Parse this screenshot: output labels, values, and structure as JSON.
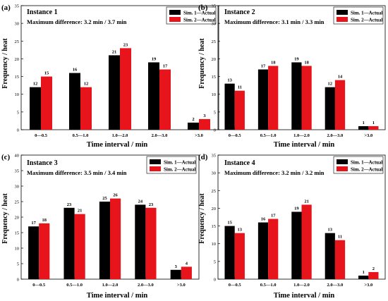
{
  "panels": [
    {
      "tag": "(a)",
      "instance": "Instance 1",
      "max_diff": "Maximum difference:  3.2 min / 3.7 min",
      "xlabel": "Time interval / min",
      "ylabel": "Frequency / heat",
      "legend": [
        "Sim. 1—Actual",
        "Sim. 2—Actual"
      ]
    },
    {
      "tag": "(b)",
      "instance": "Instance 2",
      "max_diff": "Maximum difference:  3.1 min / 3.3 min",
      "xlabel": "Time interval / min",
      "ylabel": "Frequency / heat",
      "legend": [
        "Sim. 1—Actual",
        "Sim. 2—Actual"
      ]
    },
    {
      "tag": "(c)",
      "instance": "Instance 3",
      "max_diff": "Maximum difference:  3.5 min / 3.4 min",
      "xlabel": "Time interval / min",
      "ylabel": "Frequency / heat",
      "legend": [
        "Sim. 1—Actual",
        "Sim. 2—Actual"
      ]
    },
    {
      "tag": "(d)",
      "instance": "Instance 4",
      "max_diff": "Maximum difference:  3.2 min / 3.2 min",
      "xlabel": "Time interval / min",
      "ylabel": "Frequency / heat",
      "legend": [
        "Sim. 1—Actual",
        "Sim. 2—Actual"
      ]
    }
  ],
  "colors": {
    "sim1": "#000000",
    "sim2": "#e8141b"
  },
  "chart_data": [
    {
      "type": "bar",
      "title": "Instance 1",
      "subtitle": "Maximum difference:  3.2 min / 3.7 min",
      "xlabel": "Time interval / min",
      "ylabel": "Frequency / heat",
      "ylim": [
        0,
        35
      ],
      "yticks": [
        0,
        5,
        10,
        15,
        20,
        25,
        30,
        35
      ],
      "categories": [
        "0—0.5",
        "0.5—1.0",
        "1.0—2.0",
        "2.0—3.0",
        ">3.0"
      ],
      "series": [
        {
          "name": "Sim. 1—Actual",
          "values": [
            12,
            16,
            21,
            19,
            2
          ]
        },
        {
          "name": "Sim. 2—Actual",
          "values": [
            15,
            12,
            23,
            17,
            3
          ]
        }
      ],
      "legend": "top-right",
      "grid": false
    },
    {
      "type": "bar",
      "title": "Instance 2",
      "subtitle": "Maximum difference:  3.1 min / 3.3 min",
      "xlabel": "Time interval / min",
      "ylabel": "Frequency / heat",
      "ylim": [
        0,
        35
      ],
      "yticks": [
        0,
        5,
        10,
        15,
        20,
        25,
        30,
        35
      ],
      "categories": [
        "0—0.5",
        "0.5—1.0",
        "1.0—2.0",
        "2.0—3.0",
        ">3.0"
      ],
      "series": [
        {
          "name": "Sim. 1—Actual",
          "values": [
            13,
            17,
            19,
            12,
            1
          ]
        },
        {
          "name": "Sim. 2—Actual",
          "values": [
            11,
            18,
            18,
            14,
            1
          ]
        }
      ],
      "legend": "top-right",
      "grid": false
    },
    {
      "type": "bar",
      "title": "Instance 3",
      "subtitle": "Maximum difference:  3.5 min / 3.4 min",
      "xlabel": "Time interval / min",
      "ylabel": "Frequency / heat",
      "ylim": [
        0,
        40
      ],
      "yticks": [
        0,
        5,
        10,
        15,
        20,
        25,
        30,
        35,
        40
      ],
      "categories": [
        "0—0.5",
        "0.5—1.0",
        "1.0—2.0",
        "2.0—3.0",
        ">3.0"
      ],
      "series": [
        {
          "name": "Sim. 1—Actual",
          "values": [
            17,
            23,
            25,
            24,
            3
          ]
        },
        {
          "name": "Sim. 2—Actual",
          "values": [
            18,
            21,
            26,
            23,
            4
          ]
        }
      ],
      "legend": "top-right",
      "grid": false
    },
    {
      "type": "bar",
      "title": "Instance 4",
      "subtitle": "Maximum difference:  3.2 min / 3.2 min",
      "xlabel": "Time interval / min",
      "ylabel": "Frequency / heat",
      "ylim": [
        0,
        35
      ],
      "yticks": [
        0,
        5,
        10,
        15,
        20,
        25,
        30,
        35
      ],
      "categories": [
        "0—0.5",
        "0.5—1.0",
        "1.0—2.0",
        "2.0—3.0",
        ">3.0"
      ],
      "series": [
        {
          "name": "Sim. 1—Actual",
          "values": [
            15,
            16,
            19,
            13,
            1
          ]
        },
        {
          "name": "Sim. 2—Actual",
          "values": [
            13,
            17,
            21,
            11,
            2
          ]
        }
      ],
      "legend": "top-right",
      "grid": false
    }
  ]
}
